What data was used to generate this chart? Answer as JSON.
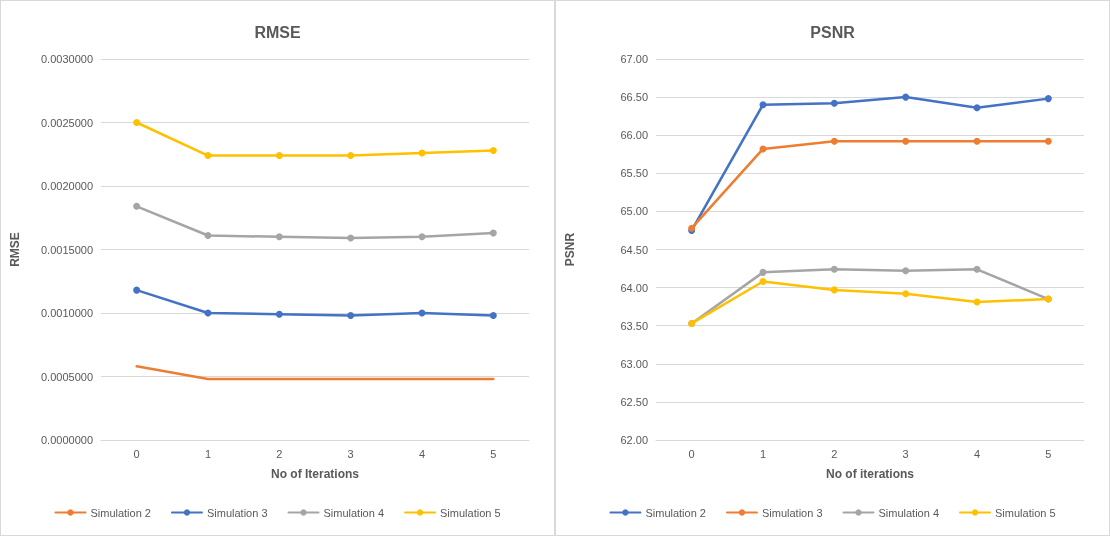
{
  "chart_data": [
    {
      "type": "line",
      "title": "RMSE",
      "xlabel": "No of Iterations",
      "ylabel": "RMSE",
      "categories": [
        "0",
        "1",
        "2",
        "3",
        "4",
        "5"
      ],
      "series": [
        {
          "name": "Simulation 2",
          "color": "#ed7d31",
          "marker": "none",
          "values": [
            0.00058,
            0.00048,
            0.00048,
            0.00048,
            0.00048,
            0.00048
          ]
        },
        {
          "name": "Simulation 3",
          "color": "#4472c4",
          "values": [
            0.00118,
            0.001,
            0.00099,
            0.00098,
            0.001,
            0.00098
          ]
        },
        {
          "name": "Simulation 4",
          "color": "#a5a5a5",
          "values": [
            0.00184,
            0.00161,
            0.0016,
            0.00159,
            0.0016,
            0.00163
          ]
        },
        {
          "name": "Simulation 5",
          "color": "#ffc000",
          "values": [
            0.0025,
            0.00224,
            0.00224,
            0.00224,
            0.00226,
            0.00228
          ]
        }
      ],
      "ylim": [
        0,
        0.003
      ],
      "yticks": [
        {
          "value": 0,
          "label": "0.0000000"
        },
        {
          "value": 0.0005,
          "label": "0.0005000"
        },
        {
          "value": 0.001,
          "label": "0.0010000"
        },
        {
          "value": 0.0015,
          "label": "0.0015000"
        },
        {
          "value": 0.002,
          "label": "0.0020000"
        },
        {
          "value": 0.0025,
          "label": "0.0025000"
        },
        {
          "value": 0.003,
          "label": "0.0030000"
        }
      ],
      "grid": "y",
      "legend": "bottom",
      "marker": "circle",
      "line_style": "solid"
    },
    {
      "type": "line",
      "title": "PSNR",
      "xlabel": "No of iterations",
      "ylabel": "PSNR",
      "categories": [
        "0",
        "1",
        "2",
        "3",
        "4",
        "5"
      ],
      "series": [
        {
          "name": "Simulation 2",
          "color": "#4472c4",
          "values": [
            64.75,
            66.4,
            66.42,
            66.5,
            66.36,
            66.48
          ]
        },
        {
          "name": "Simulation 3",
          "color": "#ed7d31",
          "values": [
            64.78,
            65.82,
            65.92,
            65.92,
            65.92,
            65.92
          ]
        },
        {
          "name": "Simulation 4",
          "color": "#a5a5a5",
          "values": [
            63.53,
            64.2,
            64.24,
            64.22,
            64.24,
            63.85
          ]
        },
        {
          "name": "Simulation 5",
          "color": "#ffc000",
          "values": [
            63.53,
            64.08,
            63.97,
            63.92,
            63.81,
            63.85
          ]
        }
      ],
      "ylim": [
        62,
        67
      ],
      "yticks": [
        {
          "value": 62,
          "label": "62.00"
        },
        {
          "value": 62.5,
          "label": "62.50"
        },
        {
          "value": 63,
          "label": "63.00"
        },
        {
          "value": 63.5,
          "label": "63.50"
        },
        {
          "value": 64,
          "label": "64.00"
        },
        {
          "value": 64.5,
          "label": "64.50"
        },
        {
          "value": 65,
          "label": "65.00"
        },
        {
          "value": 65.5,
          "label": "65.50"
        },
        {
          "value": 66,
          "label": "66.00"
        },
        {
          "value": 66.5,
          "label": "66.50"
        },
        {
          "value": 67,
          "label": "67.00"
        }
      ],
      "grid": "y",
      "legend": "bottom",
      "marker": "circle",
      "line_style": "solid"
    }
  ]
}
